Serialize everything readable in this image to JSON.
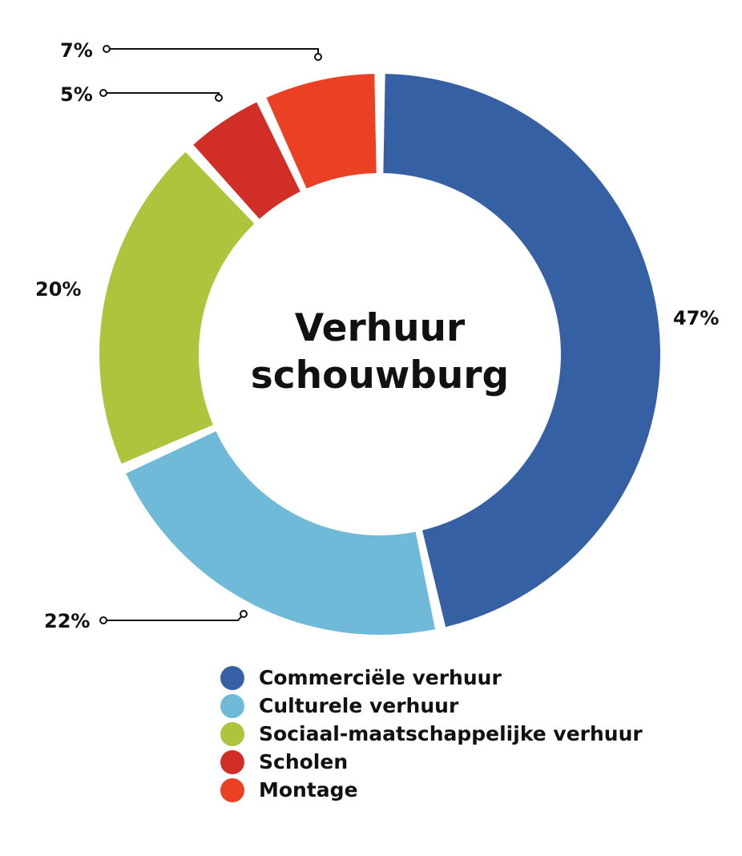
{
  "chart_data": {
    "type": "pie",
    "title": "",
    "center_title_lines": [
      "Verhuur",
      "schouwburg"
    ],
    "categories": [
      "Commerciële verhuur",
      "Culturele verhuur",
      "Sociaal-maatschappelijke verhuur",
      "Scholen",
      "Montage"
    ],
    "values": [
      47,
      22,
      20,
      5,
      7
    ],
    "value_labels": [
      "47%",
      "22%",
      "20%",
      "5%",
      "7%"
    ],
    "colors": [
      "#3560a3",
      "#6fbad9",
      "#aec43d",
      "#d02e27",
      "#ea4125"
    ],
    "legend_position": "bottom",
    "donut": true
  },
  "legend": {
    "items": [
      {
        "label": "Commerciële verhuur",
        "color": "#3560a3"
      },
      {
        "label": "Culturele verhuur",
        "color": "#6fbad9"
      },
      {
        "label": "Sociaal-maatschappelijke verhuur",
        "color": "#aec43d"
      },
      {
        "label": "Scholen",
        "color": "#d02e27"
      },
      {
        "label": "Montage",
        "color": "#ea4125"
      }
    ]
  }
}
